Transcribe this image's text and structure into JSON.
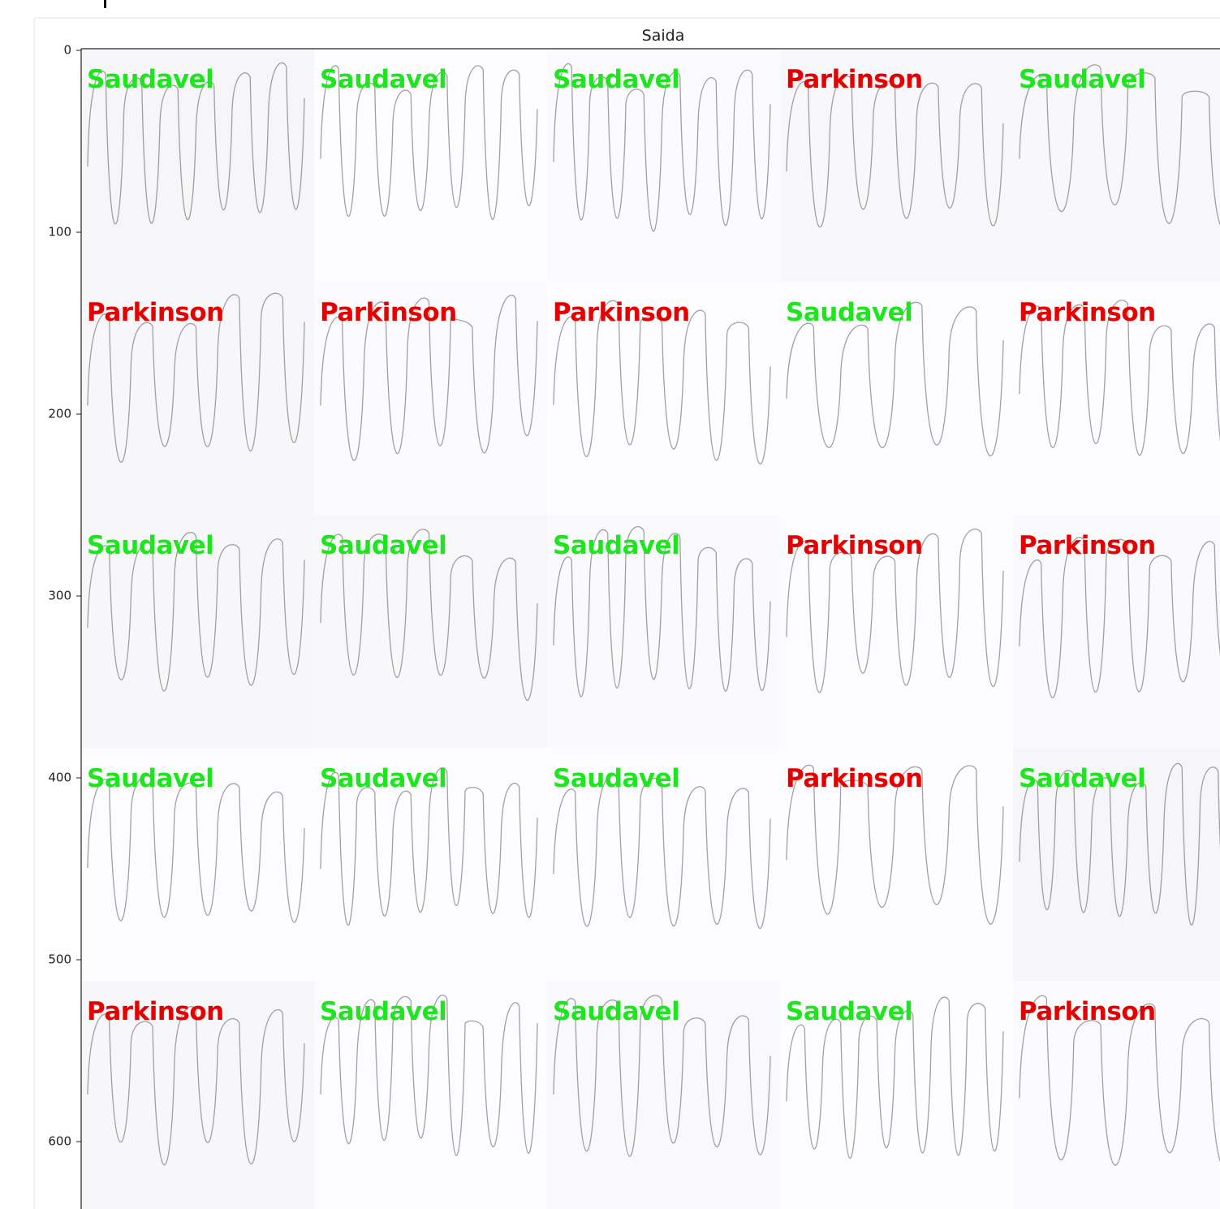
{
  "figure": {
    "title": "Saida",
    "yticks": [
      0,
      100,
      200,
      300,
      400,
      500,
      600
    ]
  },
  "tiles": [
    [
      {
        "label": "Saudavel",
        "color": "#1ee61e"
      },
      {
        "label": "Saudavel",
        "color": "#1ee61e"
      },
      {
        "label": "Saudavel",
        "color": "#1ee61e"
      },
      {
        "label": "Parkinson",
        "color": "#e60000"
      },
      {
        "label": "Saudavel",
        "color": "#1ee61e"
      }
    ],
    [
      {
        "label": "Parkinson",
        "color": "#e60000"
      },
      {
        "label": "Parkinson",
        "color": "#e60000"
      },
      {
        "label": "Parkinson",
        "color": "#e60000"
      },
      {
        "label": "Saudavel",
        "color": "#1ee61e"
      },
      {
        "label": "Parkinson",
        "color": "#e60000"
      }
    ],
    [
      {
        "label": "Saudavel",
        "color": "#1ee61e"
      },
      {
        "label": "Saudavel",
        "color": "#1ee61e"
      },
      {
        "label": "Saudavel",
        "color": "#1ee61e"
      },
      {
        "label": "Parkinson",
        "color": "#e60000"
      },
      {
        "label": "Parkinson",
        "color": "#e60000"
      }
    ],
    [
      {
        "label": "Saudavel",
        "color": "#1ee61e"
      },
      {
        "label": "Saudavel",
        "color": "#1ee61e"
      },
      {
        "label": "Saudavel",
        "color": "#1ee61e"
      },
      {
        "label": "Parkinson",
        "color": "#e60000"
      },
      {
        "label": "Saudavel",
        "color": "#1ee61e"
      }
    ],
    [
      {
        "label": "Parkinson",
        "color": "#e60000"
      },
      {
        "label": "Saudavel",
        "color": "#1ee61e"
      },
      {
        "label": "Saudavel",
        "color": "#1ee61e"
      },
      {
        "label": "Saudavel",
        "color": "#1ee61e"
      },
      {
        "label": "Parkinson",
        "color": "#e60000"
      }
    ]
  ]
}
